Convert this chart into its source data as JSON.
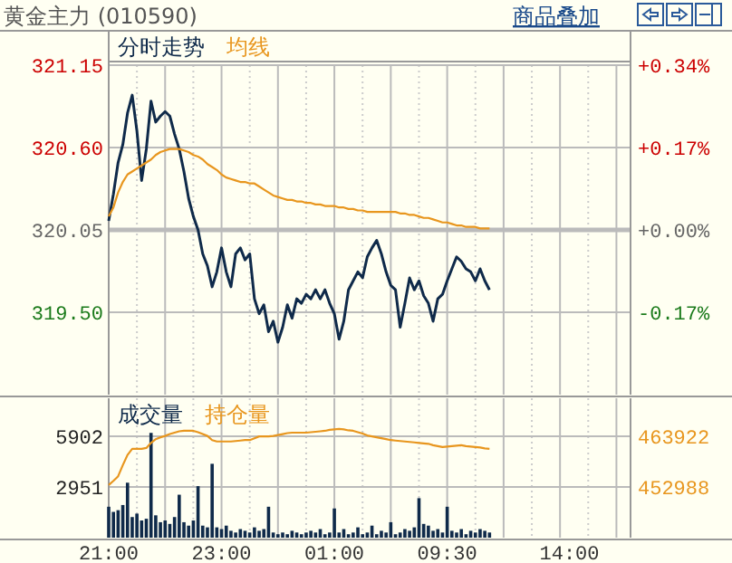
{
  "chart_data": [
    {
      "type": "line",
      "title": "黄金主力 (010590)",
      "annotations": [
        "商品叠加"
      ],
      "legend": "top left",
      "grid": true,
      "ref_lines": [
        {
          "axis": "y",
          "value": 320.05,
          "color": "#bbbbbb"
        }
      ],
      "categories": [
        null,
        null,
        null,
        null,
        null,
        null,
        null,
        null,
        null,
        null,
        null,
        null,
        null,
        null,
        null,
        null,
        null,
        null,
        null,
        null,
        null,
        null,
        null,
        null,
        null,
        null,
        null,
        null,
        null,
        null,
        null,
        null,
        null,
        null,
        null,
        null,
        null,
        null,
        null,
        null,
        null,
        null,
        null,
        null,
        null,
        null,
        null,
        null,
        null,
        null,
        null,
        null,
        null,
        null,
        null,
        null,
        null,
        null,
        null,
        null,
        null,
        null,
        null,
        null,
        null,
        null,
        null,
        null,
        null,
        null,
        null,
        null,
        null,
        null,
        null,
        null,
        null,
        null,
        null,
        null,
        null,
        null,
        null,
        null,
        null,
        null,
        null,
        null,
        null,
        null,
        null,
        null,
        null,
        null,
        null,
        null,
        null,
        null,
        null,
        null,
        null,
        null,
        null,
        null,
        null,
        null,
        null,
        null,
        null,
        null,
        null
      ],
      "ylim": [
        318.95,
        321.15
      ],
      "yticks": [
        321.15,
        {
          "value": 320.6,
          "label": "320.60"
        },
        320.05,
        {
          "value": 319.5,
          "label": "319.50"
        }
      ],
      "y2lim": [
        -0.34,
        0.34
      ],
      "y2ticks": [
        {
          "value": 0.34,
          "label": "+0.34%"
        },
        {
          "value": 0.17,
          "label": "+0.17%"
        },
        {
          "value": 0,
          "label": "+0.00%"
        },
        {
          "value": -0.17,
          "label": "-0.17%"
        }
      ],
      "series": [
        {
          "name": "分时走势",
          "color": "#0f2a4a",
          "values": [
            320.11,
            320.29,
            320.5,
            320.62,
            320.83,
            320.95,
            320.71,
            320.38,
            320.59,
            320.91,
            320.77,
            320.81,
            320.84,
            320.81,
            320.69,
            320.59,
            320.44,
            320.26,
            320.14,
            320.05,
            319.89,
            319.81,
            319.67,
            319.77,
            319.93,
            319.77,
            319.67,
            319.89,
            319.93,
            319.85,
            319.89,
            319.59,
            319.49,
            319.55,
            319.37,
            319.44,
            319.3,
            319.4,
            319.55,
            319.46,
            319.59,
            319.56,
            319.62,
            319.59,
            319.65,
            319.59,
            319.65,
            319.56,
            319.49,
            319.32,
            319.44,
            319.65,
            319.71,
            319.77,
            319.73,
            319.87,
            319.93,
            319.98,
            319.89,
            319.77,
            319.68,
            319.65,
            319.4,
            319.56,
            319.73,
            319.65,
            319.71,
            319.61,
            319.56,
            319.44,
            319.59,
            319.62,
            319.71,
            319.79,
            319.87,
            319.84,
            319.79,
            319.77,
            319.71,
            319.79,
            319.71,
            319.65,
            null,
            null,
            null,
            null,
            null,
            null,
            null,
            null,
            null,
            null,
            null,
            null,
            null,
            null,
            null,
            null,
            null,
            null,
            null,
            null,
            null,
            null,
            null,
            null,
            null,
            null,
            null,
            null,
            null
          ]
        },
        {
          "name": "均线",
          "color": "#e8961e",
          "values": [
            320.14,
            320.2,
            320.3,
            320.37,
            320.42,
            320.44,
            320.46,
            320.48,
            320.5,
            320.52,
            320.55,
            320.57,
            320.58,
            320.59,
            320.59,
            320.59,
            320.58,
            320.57,
            320.55,
            320.54,
            320.52,
            320.49,
            320.47,
            320.45,
            320.42,
            320.4,
            320.39,
            320.38,
            320.37,
            320.37,
            320.36,
            320.36,
            320.34,
            320.32,
            320.3,
            320.28,
            320.27,
            320.26,
            320.25,
            320.25,
            320.24,
            320.24,
            320.23,
            320.23,
            320.22,
            320.22,
            320.21,
            320.21,
            320.21,
            320.2,
            320.2,
            320.19,
            320.19,
            320.18,
            320.18,
            320.17,
            320.17,
            320.17,
            320.17,
            320.17,
            320.17,
            320.17,
            320.16,
            320.16,
            320.15,
            320.15,
            320.14,
            320.13,
            320.13,
            320.12,
            320.11,
            320.1,
            320.1,
            320.09,
            320.08,
            320.08,
            320.07,
            320.07,
            320.07,
            320.06,
            320.06,
            320.06,
            null,
            null,
            null,
            null,
            null,
            null,
            null,
            null,
            null,
            null,
            null,
            null,
            null,
            null,
            null,
            null,
            null,
            null,
            null,
            null,
            null,
            null,
            null,
            null,
            null,
            null,
            null,
            null,
            null
          ]
        }
      ]
    },
    {
      "type": "bar",
      "legend": "top left",
      "grid": true,
      "categories": [
        "21:00",
        null,
        null,
        null,
        null,
        null,
        null,
        null,
        null,
        null,
        null,
        null,
        null,
        null,
        null,
        null,
        null,
        null,
        null,
        null,
        null,
        null,
        null,
        null,
        "23:00",
        null,
        null,
        null,
        null,
        null,
        null,
        null,
        null,
        null,
        null,
        null,
        null,
        null,
        null,
        null,
        null,
        null,
        null,
        null,
        null,
        null,
        null,
        null,
        "01:00",
        null,
        null,
        null,
        null,
        null,
        null,
        null,
        null,
        null,
        null,
        null,
        null,
        null,
        null,
        null,
        null,
        null,
        null,
        null,
        null,
        null,
        null,
        null,
        "09:30",
        null,
        null,
        null,
        null,
        null,
        null,
        null,
        null,
        null,
        null,
        null,
        null,
        null,
        null,
        null,
        null,
        null,
        null,
        null,
        null,
        null,
        null,
        null,
        null,
        null,
        "14:00",
        null,
        null,
        null,
        null,
        null,
        null,
        null,
        null,
        null,
        null,
        null,
        null
      ],
      "ylim": [
        0,
        8115
      ],
      "yticks": [
        5902,
        2951
      ],
      "y2lim": [
        442054,
        472123
      ],
      "y2ticks": [
        463922,
        452988
      ],
      "series": [
        {
          "name": "成交量",
          "color": "#0f2a4a",
          "values": [
            1800,
            1500,
            1600,
            1900,
            3200,
            1200,
            1400,
            1000,
            1100,
            6100,
            1300,
            900,
            1000,
            800,
            1200,
            2500,
            900,
            700,
            1000,
            3000,
            700,
            600,
            4300,
            600,
            500,
            700,
            400,
            300,
            500,
            400,
            300,
            600,
            400,
            500,
            1800,
            300,
            200,
            300,
            200,
            400,
            300,
            200,
            300,
            400,
            300,
            500,
            200,
            300,
            1700,
            300,
            500,
            200,
            300,
            600,
            200,
            300,
            700,
            200,
            400,
            300,
            900,
            200,
            300,
            500,
            400,
            600,
            2300,
            800,
            700,
            400,
            500,
            300,
            1800,
            400,
            300,
            500,
            200,
            400,
            300,
            500,
            400,
            300,
            null,
            null,
            null,
            null,
            null,
            null,
            null,
            null,
            null,
            null,
            null,
            null,
            null,
            null,
            null,
            null,
            null,
            null,
            null,
            null,
            null,
            null,
            null,
            null,
            null,
            null,
            null,
            null,
            null
          ]
        },
        {
          "name": "持仓量",
          "type": "line",
          "axis": "y2",
          "color": "#e8961e",
          "values": [
            453400,
            454300,
            455300,
            457700,
            459900,
            461200,
            461200,
            461200,
            461400,
            462500,
            463300,
            463700,
            464000,
            464400,
            464700,
            465000,
            465100,
            465100,
            465100,
            464800,
            464400,
            464000,
            463100,
            462800,
            462800,
            462800,
            462800,
            462900,
            463000,
            463100,
            463100,
            463500,
            463900,
            463900,
            463900,
            464000,
            464200,
            464400,
            464600,
            464700,
            464700,
            464700,
            464700,
            464800,
            464900,
            465000,
            465100,
            465300,
            465400,
            465500,
            465400,
            465200,
            465100,
            464800,
            464500,
            464100,
            463900,
            463700,
            463500,
            463300,
            463100,
            463000,
            462900,
            462800,
            462700,
            462600,
            462500,
            462400,
            462300,
            462000,
            461800,
            461600,
            461700,
            461800,
            461900,
            462000,
            461800,
            461700,
            461600,
            461500,
            461300,
            461200,
            null,
            null,
            null,
            null,
            null,
            null,
            null,
            null,
            null,
            null,
            null,
            null,
            null,
            null,
            null,
            null,
            null,
            null,
            null,
            null,
            null,
            null,
            null,
            null,
            null,
            null,
            null,
            null,
            null
          ]
        }
      ]
    }
  ]
}
